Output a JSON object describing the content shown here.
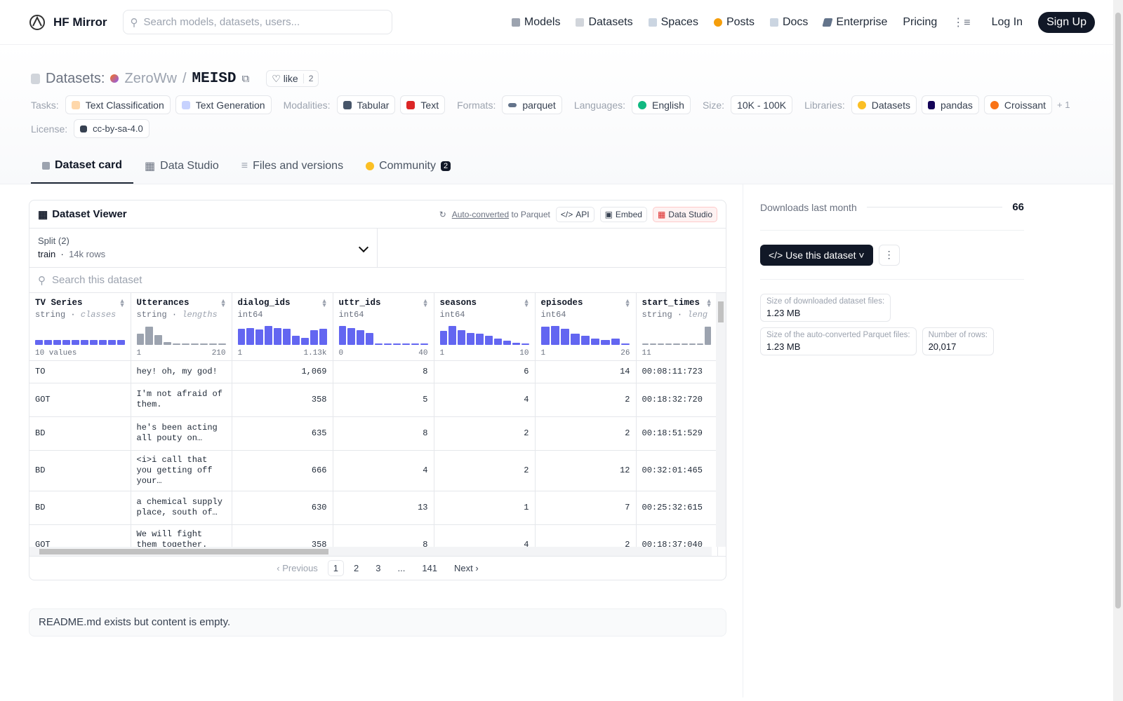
{
  "nav": {
    "brand": "HF Mirror",
    "search_placeholder": "Search models, datasets, users...",
    "links": [
      "Models",
      "Datasets",
      "Spaces",
      "Posts",
      "Docs",
      "Enterprise",
      "Pricing"
    ],
    "login": "Log In",
    "signup": "Sign Up"
  },
  "header": {
    "label": "Datasets:",
    "owner": "ZeroWw",
    "sep": "/",
    "name": "MEISD",
    "like_label": "like",
    "like_count": "2",
    "tasks_label": "Tasks:",
    "tasks": [
      "Text Classification",
      "Text Generation"
    ],
    "modalities_label": "Modalities:",
    "modalities": [
      "Tabular",
      "Text"
    ],
    "formats_label": "Formats:",
    "format": "parquet",
    "languages_label": "Languages:",
    "language": "English",
    "size_label": "Size:",
    "size": "10K - 100K",
    "libraries_label": "Libraries:",
    "libraries": [
      "Datasets",
      "pandas",
      "Croissant"
    ],
    "libraries_more": "+ 1",
    "license_label": "License:",
    "license": "cc-by-sa-4.0"
  },
  "tabs": [
    {
      "label": "Dataset card"
    },
    {
      "label": "Data Studio"
    },
    {
      "label": "Files and versions"
    },
    {
      "label": "Community",
      "badge": "2"
    }
  ],
  "viewer": {
    "title": "Dataset Viewer",
    "auto_converted": "Auto-converted",
    "to_parquet": "to Parquet",
    "api": "API",
    "embed": "Embed",
    "studio": "Data Studio",
    "split_label": "Split (2)",
    "split_value": "train",
    "split_rows": "14k rows",
    "search_placeholder": "Search this dataset",
    "columns": [
      {
        "name": "TV Series",
        "type": "string",
        "kind": "classes",
        "min": "10 values",
        "max": "",
        "bars": [
          0.25,
          0.25,
          0.25,
          0.25,
          0.25,
          0.25,
          0.25,
          0.25,
          0.25,
          0.25
        ],
        "gray": false
      },
      {
        "name": "Utterances",
        "type": "string",
        "kind": "lengths",
        "min": "1",
        "max": "210",
        "bars": [
          0.55,
          0.9,
          0.5,
          0.12,
          0.04,
          0.03,
          0.02,
          0.02,
          0.0,
          0.01
        ],
        "gray": true
      },
      {
        "name": "dialog_ids",
        "type": "int64",
        "kind": "",
        "min": "1",
        "max": "1.13k",
        "bars": [
          0.8,
          0.85,
          0.78,
          0.95,
          0.85,
          0.8,
          0.45,
          0.35,
          0.75,
          0.8
        ],
        "gray": false
      },
      {
        "name": "uttr_ids",
        "type": "int64",
        "kind": "",
        "min": "0",
        "max": "40",
        "bars": [
          0.95,
          0.85,
          0.75,
          0.6,
          0.05,
          0.03,
          0.02,
          0.02,
          0.01,
          0.01
        ],
        "gray": false
      },
      {
        "name": "seasons",
        "type": "int64",
        "kind": "",
        "min": "1",
        "max": "10",
        "bars": [
          0.7,
          0.95,
          0.75,
          0.6,
          0.55,
          0.45,
          0.3,
          0.2,
          0.1,
          0.05
        ],
        "gray": false
      },
      {
        "name": "episodes",
        "type": "int64",
        "kind": "",
        "min": "1",
        "max": "26",
        "bars": [
          0.9,
          0.95,
          0.8,
          0.55,
          0.45,
          0.3,
          0.25,
          0.3,
          0.05
        ],
        "gray": false
      },
      {
        "name": "start_times",
        "type": "string",
        "kind": "leng",
        "min": "11",
        "max": "",
        "bars": [
          0.03,
          0.03,
          0.03,
          0.03,
          0.03,
          0.03,
          0.03,
          0.03,
          0.9
        ],
        "gray": true
      }
    ],
    "rows": [
      [
        "TO",
        "hey! oh, my god!",
        "1,069",
        "8",
        "6",
        "14",
        "00:08:11:723"
      ],
      [
        "GOT",
        "I'm not afraid of them.",
        "358",
        "5",
        "4",
        "2",
        "00:18:32:720"
      ],
      [
        "BD",
        "he's been acting all pouty on…",
        "635",
        "8",
        "2",
        "2",
        "00:18:51:529"
      ],
      [
        "BD",
        "<i>i call that you getting off your…",
        "666",
        "4",
        "2",
        "12",
        "00:32:01:465"
      ],
      [
        "BD",
        "a chemical supply place, south of…",
        "630",
        "13",
        "1",
        "7",
        "00:25:32:615"
      ],
      [
        "GOT",
        "We will fight them together. It's…",
        "358",
        "8",
        "4",
        "2",
        "00:18:37:040"
      ]
    ],
    "pager": {
      "prev": "Previous",
      "pages": [
        "1",
        "2",
        "3",
        "...",
        "141"
      ],
      "next": "Next"
    }
  },
  "readme": "README.md exists but content is empty.",
  "sidebar": {
    "downloads_label": "Downloads last month",
    "downloads": "66",
    "use_button": "Use this dataset",
    "stats": [
      {
        "k": "Size of downloaded dataset files:",
        "v": "1.23 MB"
      },
      {
        "k": "Size of the auto-converted Parquet files:",
        "v": "1.23 MB"
      },
      {
        "k": "Number of rows:",
        "v": "20,017"
      }
    ]
  }
}
